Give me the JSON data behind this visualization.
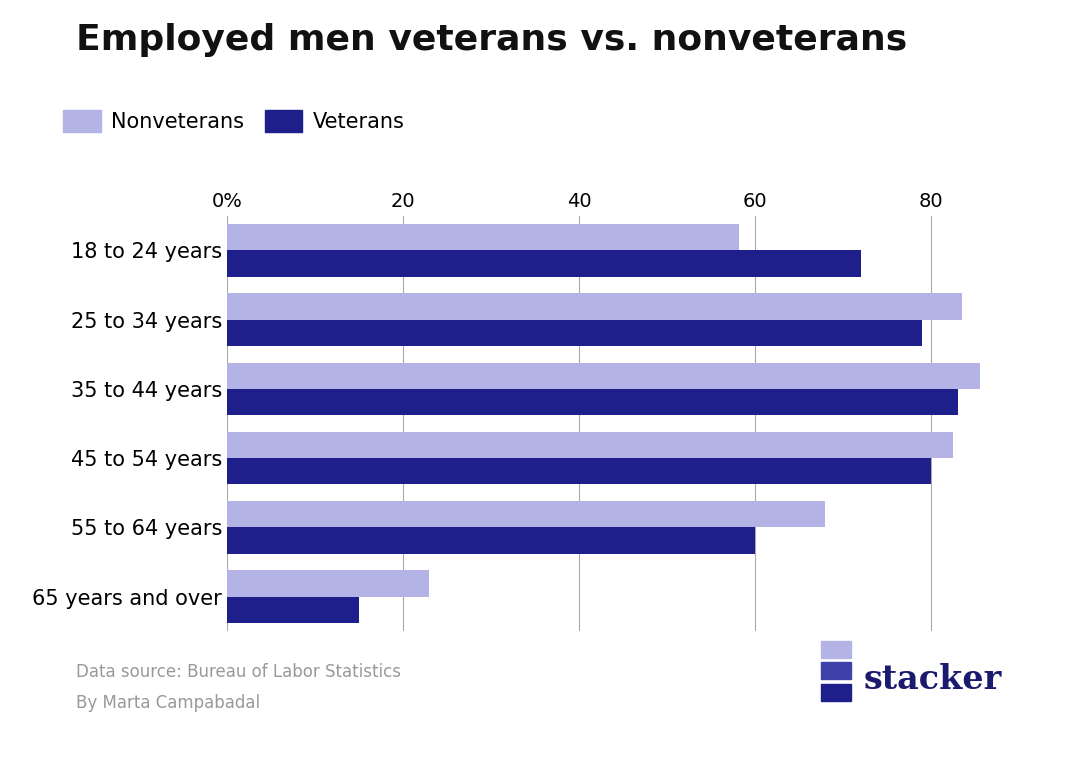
{
  "title": "Employed men veterans vs. nonveterans",
  "categories": [
    "18 to 24 years",
    "25 to 34 years",
    "35 to 44 years",
    "45 to 54 years",
    "55 to 64 years",
    "65 years and over"
  ],
  "nonveterans": [
    58.2,
    83.5,
    85.5,
    82.5,
    68.0,
    23.0
  ],
  "veterans": [
    72.0,
    79.0,
    83.0,
    80.0,
    60.0,
    15.0
  ],
  "nonveteran_color": "#b3b3e6",
  "veteran_color": "#1f1f8c",
  "background_color": "#ffffff",
  "title_fontsize": 26,
  "label_fontsize": 15,
  "tick_fontsize": 14,
  "legend_fontsize": 15,
  "xlim": [
    0,
    92
  ],
  "xticks": [
    0,
    20,
    40,
    60,
    80
  ],
  "xticklabels": [
    "0%",
    "20",
    "40",
    "60",
    "80"
  ],
  "footnote1": "Data source: Bureau of Labor Statistics",
  "footnote2": "By Marta Campabadal",
  "bar_height": 0.38,
  "footnote_color": "#999999",
  "title_color": "#111111",
  "stacker_color": "#1a1a6e",
  "grid_color": "#aaaaaa"
}
